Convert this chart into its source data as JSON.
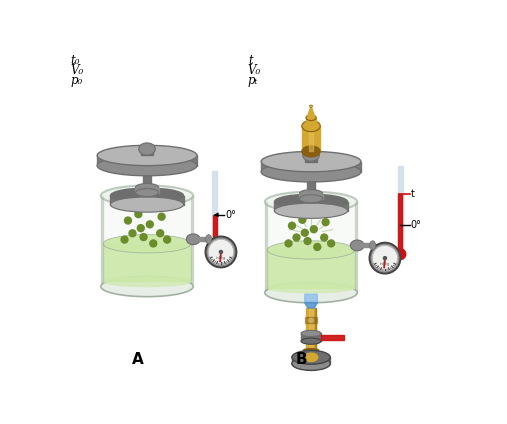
{
  "bg_color": "#ffffff",
  "gray_dark": "#6e6e6e",
  "gray_mid": "#8c8c8c",
  "gray_light": "#b5b5b5",
  "glass_edge": "#99aa99",
  "glass_fill": "#e5ede5",
  "liquid_fill": "#cce8a8",
  "gas_dot_color": "#6b8c2a",
  "thermometer_red": "#cc1111",
  "thermometer_bg": "#d0dde8",
  "gold_color": "#d4a830",
  "gold_mid": "#c49020",
  "gold_dark": "#8a6010",
  "gold_light": "#e8c060",
  "blue_connector": "#5090cc",
  "blue_light": "#80b8e8",
  "label_A": "A",
  "label_B": "B",
  "text_left": [
    "t₀",
    "V₀",
    "p₀"
  ],
  "text_right": [
    "t",
    "V₀",
    "pₜ"
  ]
}
